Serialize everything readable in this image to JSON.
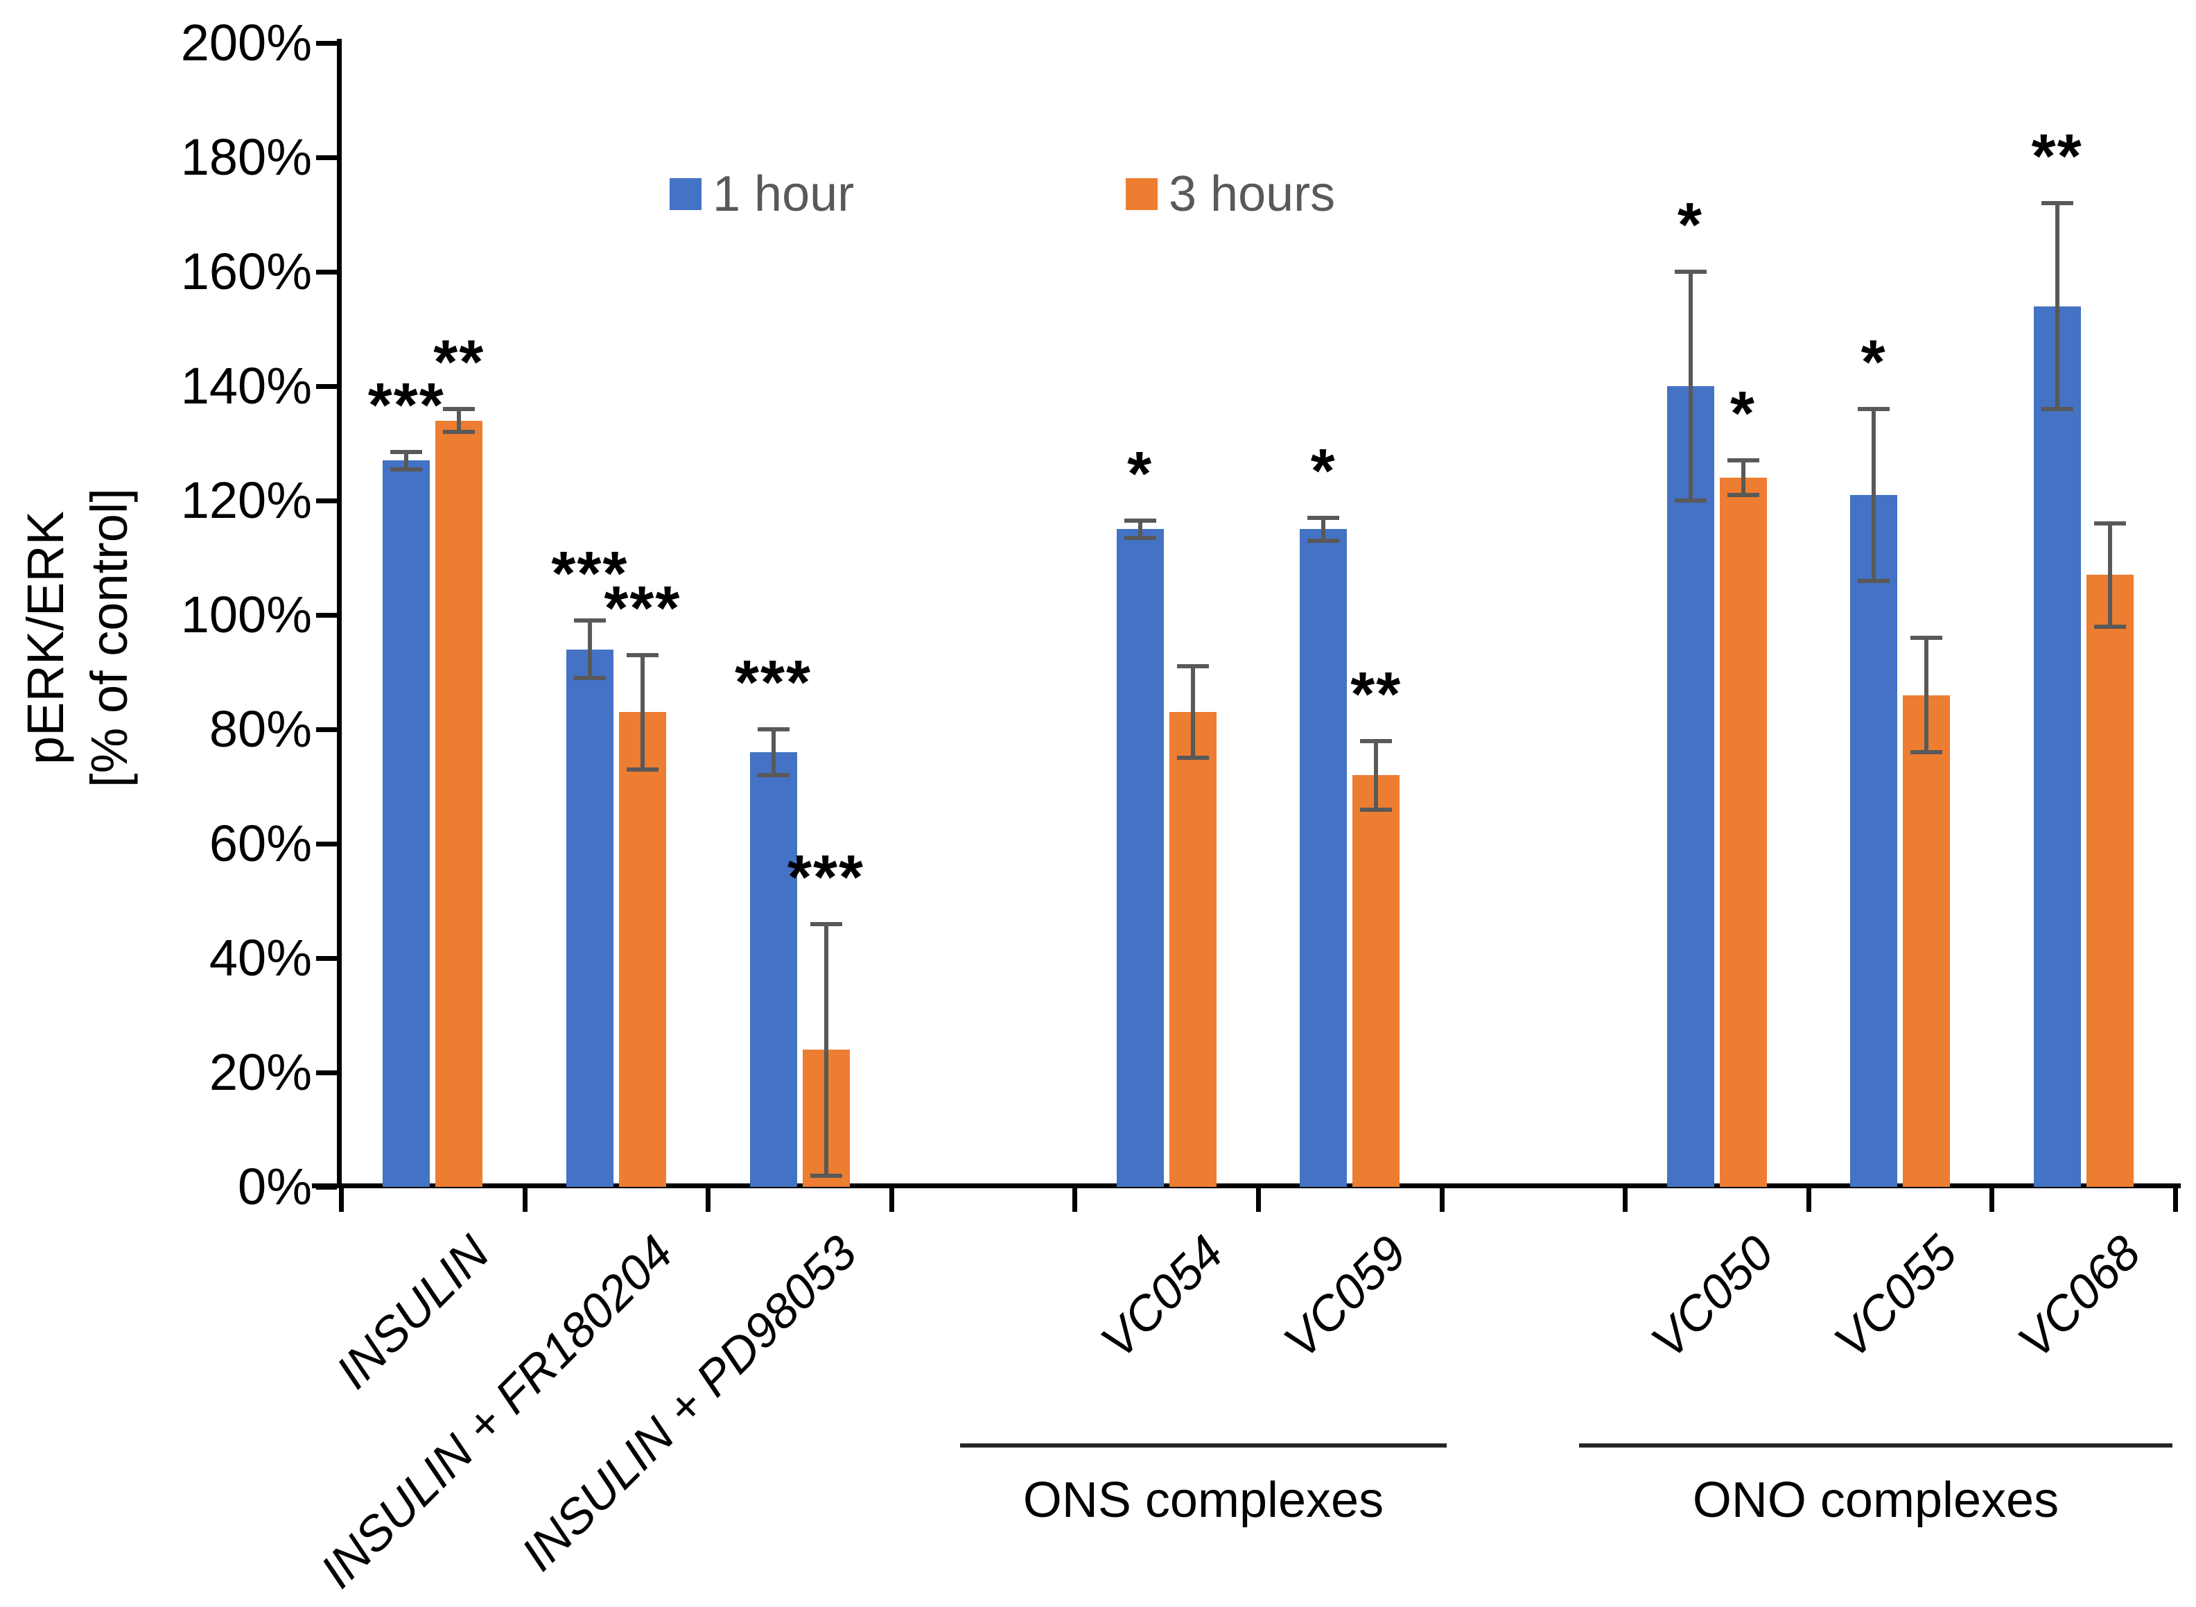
{
  "colors": {
    "series_1hour": "#4472C4",
    "series_3hours": "#ED7D31",
    "error_bar": "#595959",
    "axis": "#000000",
    "tick_label": "#000000",
    "legend_text": "#595959"
  },
  "y_axis": {
    "title_line1": "pERK/ERK",
    "title_line2": "[% of control]",
    "min": 0,
    "max": 200,
    "step": 20,
    "tick_suffix": "%"
  },
  "legend": [
    {
      "label": "1 hour",
      "color": "#4472C4"
    },
    {
      "label": "3 hours",
      "color": "#ED7D31"
    }
  ],
  "chart_data": {
    "type": "bar",
    "title": "",
    "xlabel": "",
    "ylabel": "pERK/ERK [% of control]",
    "ylim": [
      0,
      200
    ],
    "ytick_step": 20,
    "grid": false,
    "legend_position": "top-center",
    "categories": [
      "INSULIN",
      "INSULIN + FR180204",
      "INSULIN + PD98053",
      "VC054",
      "VC059",
      "VC050",
      "VC055",
      "VC068"
    ],
    "series": [
      {
        "name": "1 hour",
        "color": "#4472C4",
        "values": [
          127,
          94,
          76,
          115,
          115,
          140,
          121,
          154
        ],
        "errors": [
          1.5,
          5,
          4,
          1.5,
          2,
          20,
          15,
          18
        ],
        "significance": [
          "***",
          "***",
          "***",
          "*",
          "*",
          "*",
          "*",
          "**"
        ]
      },
      {
        "name": "3 hours",
        "color": "#ED7D31",
        "values": [
          134,
          83,
          24,
          83,
          72,
          124,
          86,
          107
        ],
        "errors": [
          2,
          10,
          22,
          8,
          6,
          3,
          10,
          9
        ],
        "significance": [
          "**",
          "***",
          "***",
          "",
          "**",
          "*",
          "",
          ""
        ]
      }
    ],
    "groups": [
      {
        "label": "ONS complexes",
        "categories": [
          "VC054",
          "VC059"
        ]
      },
      {
        "label": "ONO complexes",
        "categories": [
          "VC050",
          "VC055",
          "VC068"
        ]
      }
    ]
  }
}
